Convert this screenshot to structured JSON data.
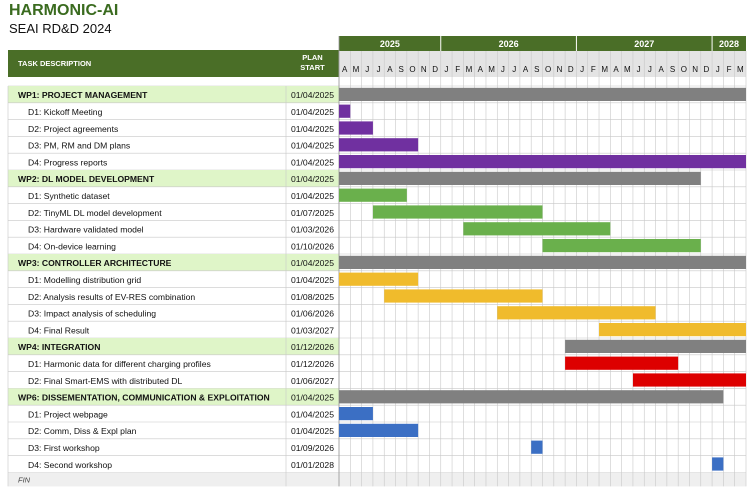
{
  "header": {
    "title": "HARMONIC-AI",
    "subtitle": "SEAI RD&D 2024",
    "col_task": "TASK DESCRIPTION",
    "col_plan": [
      "PLAN",
      "START"
    ]
  },
  "footer": {
    "label": "FIN"
  },
  "colors": {
    "header_bg": "#4a6e27",
    "wp_row_bg": "#dff5c8",
    "wp_bar": "#808080",
    "month_bg": "#e4e4e4",
    "grid": "#c8c8c8",
    "footer_bg": "#efefef"
  },
  "chart_data": {
    "type": "gantt",
    "timeline_start": "04/2025",
    "months": [
      "A",
      "M",
      "J",
      "J",
      "A",
      "S",
      "O",
      "N",
      "D",
      "J",
      "F",
      "M",
      "A",
      "M",
      "J",
      "J",
      "A",
      "S",
      "O",
      "N",
      "D",
      "J",
      "F",
      "M",
      "A",
      "M",
      "J",
      "J",
      "A",
      "S",
      "O",
      "N",
      "D",
      "J",
      "F",
      "M"
    ],
    "years": [
      {
        "label": "2025",
        "start_index": 0,
        "span": 9
      },
      {
        "label": "2026",
        "start_index": 9,
        "span": 12
      },
      {
        "label": "2027",
        "start_index": 21,
        "span": 12
      },
      {
        "label": "2028",
        "start_index": 33,
        "span": 3
      }
    ],
    "rows": [
      {
        "kind": "wp",
        "task": "WP1: PROJECT MANAGEMENT",
        "start": "01/04/2025",
        "bar_start": 0,
        "bar_months": 36,
        "color": "#808080"
      },
      {
        "kind": "task",
        "task": "D1: Kickoff Meeting",
        "start": "01/04/2025",
        "bar_start": 0,
        "bar_months": 1,
        "color": "#7030a0"
      },
      {
        "kind": "task",
        "task": "D2: Project agreements",
        "start": "01/04/2025",
        "bar_start": 0,
        "bar_months": 3,
        "color": "#7030a0"
      },
      {
        "kind": "task",
        "task": "D3: PM, RM and DM plans",
        "start": "01/04/2025",
        "bar_start": 0,
        "bar_months": 7,
        "color": "#7030a0"
      },
      {
        "kind": "task",
        "task": "D4: Progress reports",
        "start": "01/04/2025",
        "bar_start": 0,
        "bar_months": 36,
        "color": "#7030a0"
      },
      {
        "kind": "wp",
        "task": "WP2: DL MODEL DEVELOPMENT",
        "start": "01/04/2025",
        "bar_start": 0,
        "bar_months": 32,
        "color": "#808080"
      },
      {
        "kind": "task",
        "task": "D1: Synthetic dataset",
        "start": "01/04/2025",
        "bar_start": 0,
        "bar_months": 6,
        "color": "#6ab04c"
      },
      {
        "kind": "task",
        "task": "D2: TinyML DL model development",
        "start": "01/07/2025",
        "bar_start": 3,
        "bar_months": 15,
        "color": "#6ab04c"
      },
      {
        "kind": "task",
        "task": "D3: Hardware validated model",
        "start": "01/03/2026",
        "bar_start": 11,
        "bar_months": 13,
        "color": "#6ab04c"
      },
      {
        "kind": "task",
        "task": "D4: On-device learning",
        "start": "01/10/2026",
        "bar_start": 18,
        "bar_months": 14,
        "color": "#6ab04c"
      },
      {
        "kind": "wp",
        "task": "WP3: CONTROLLER ARCHITECTURE",
        "start": "01/04/2025",
        "bar_start": 0,
        "bar_months": 36,
        "color": "#808080"
      },
      {
        "kind": "task",
        "task": "D1: Modelling distribution grid",
        "start": "01/04/2025",
        "bar_start": 0,
        "bar_months": 7,
        "color": "#f0bb2c"
      },
      {
        "kind": "task",
        "task": "D2: Analysis results of EV-RES combination",
        "start": "01/08/2025",
        "bar_start": 4,
        "bar_months": 14,
        "color": "#f0bb2c"
      },
      {
        "kind": "task",
        "task": "D3: Impact analysis of scheduling",
        "start": "01/06/2026",
        "bar_start": 14,
        "bar_months": 14,
        "color": "#f0bb2c"
      },
      {
        "kind": "task",
        "task": "D4: Final Result",
        "start": "01/03/2027",
        "bar_start": 23,
        "bar_months": 13,
        "color": "#f0bb2c"
      },
      {
        "kind": "wp",
        "task": "WP4: INTEGRATION",
        "start": "01/12/2026",
        "bar_start": 20,
        "bar_months": 16,
        "color": "#808080"
      },
      {
        "kind": "task",
        "task": "D1: Harmonic data for different charging profiles",
        "start": "01/12/2026",
        "bar_start": 20,
        "bar_months": 10,
        "color": "#dd0000"
      },
      {
        "kind": "task",
        "task": "D2: Final Smart-EMS with distributed DL",
        "start": "01/06/2027",
        "bar_start": 26,
        "bar_months": 10,
        "color": "#dd0000"
      },
      {
        "kind": "wp",
        "task": "WP6: DISSEMENTATION, COMMUNICATION & EXPLOITATION",
        "start": "01/04/2025",
        "bar_start": 0,
        "bar_months": 34,
        "color": "#808080"
      },
      {
        "kind": "task",
        "task": "D1: Project webpage",
        "start": "01/04/2025",
        "bar_start": 0,
        "bar_months": 3,
        "color": "#3b6fc4"
      },
      {
        "kind": "task",
        "task": "D2: Comm, Diss & Expl plan",
        "start": "01/04/2025",
        "bar_start": 0,
        "bar_months": 7,
        "color": "#3b6fc4"
      },
      {
        "kind": "task",
        "task": "D3: First workshop",
        "start": "01/09/2026",
        "bar_start": 17,
        "bar_months": 1,
        "color": "#3b6fc4"
      },
      {
        "kind": "task",
        "task": "D4: Second workshop",
        "start": "01/01/2028",
        "bar_start": 33,
        "bar_months": 1,
        "color": "#3b6fc4"
      }
    ]
  }
}
